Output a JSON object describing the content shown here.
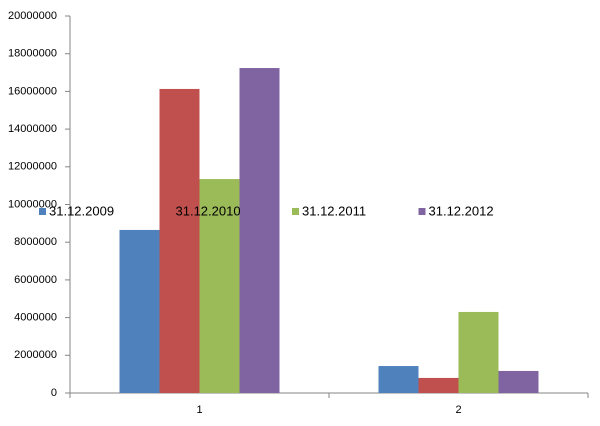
{
  "chart_data": {
    "type": "bar",
    "categories": [
      "1",
      "2"
    ],
    "series": [
      {
        "name": "31.12.2009",
        "color": "#4f81bd",
        "values": [
          8650000,
          1430000
        ]
      },
      {
        "name": "31.12.2010",
        "color": "#c0504d",
        "values": [
          16130000,
          800000
        ]
      },
      {
        "name": "31.12.2011",
        "color": "#9bbb59",
        "values": [
          11350000,
          4300000
        ]
      },
      {
        "name": "31.12.2012",
        "color": "#8064a2",
        "values": [
          17240000,
          1170000
        ]
      }
    ],
    "ylim": [
      0,
      20000000
    ],
    "yticks": [
      0,
      2000000,
      4000000,
      6000000,
      8000000,
      10000000,
      12000000,
      14000000,
      16000000,
      18000000,
      20000000
    ],
    "grid": false
  }
}
